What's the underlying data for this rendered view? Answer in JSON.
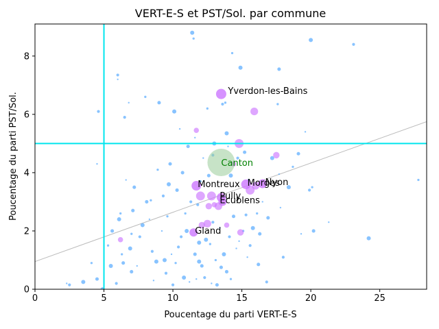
{
  "chart_data": {
    "type": "scatter",
    "title": "VERT-E-S et PST/Sol. par commune",
    "xlabel": "Poucentage du parti VERT-E-S",
    "ylabel": "Poucentage du parti PST/Sol.",
    "xlim": [
      0,
      28.4
    ],
    "ylim": [
      0,
      9.1
    ],
    "xticks": [
      0,
      5,
      10,
      15,
      20,
      25
    ],
    "yticks": [
      0,
      2,
      4,
      6,
      8
    ],
    "grid": false,
    "reference_lines": {
      "vertical_x": 5,
      "horizontal_y": 5,
      "color": "#00e5ee"
    },
    "regression_line": {
      "points": [
        [
          0,
          0.95
        ],
        [
          28.4,
          5.75
        ]
      ],
      "color": "#bbbbbb"
    },
    "colors": {
      "small_points": "#55aaff",
      "labelled_points": "#cc77ff",
      "canton_bubble": "#99cc99",
      "canton_label": "#008000"
    },
    "canton": {
      "name": "Canton",
      "x": 13.5,
      "y": 4.35
    },
    "labelled_communes": [
      {
        "name": "Yverdon-les-Bains",
        "x": 13.5,
        "y": 6.7
      },
      {
        "name": "Montreux",
        "x": 11.7,
        "y": 3.55
      },
      {
        "name": "Morges",
        "x": 15.3,
        "y": 3.6
      },
      {
        "name": "Nyon",
        "x": 16.5,
        "y": 3.62
      },
      {
        "name": "Pully",
        "x": 13.5,
        "y": 3.15
      },
      {
        "name": "Ecublens",
        "x": 13.6,
        "y": 3.0
      },
      {
        "name": "Gland",
        "x": 11.5,
        "y": 1.95
      }
    ],
    "medium_points": [
      [
        11.7,
        5.45
      ],
      [
        14.8,
        5.0
      ],
      [
        15.9,
        6.1
      ],
      [
        17.5,
        4.6
      ],
      [
        14.4,
        4.3
      ],
      [
        12.0,
        3.2
      ],
      [
        12.5,
        2.25
      ],
      [
        12.1,
        2.2
      ],
      [
        13.9,
        2.2
      ],
      [
        15.6,
        3.4
      ],
      [
        16.0,
        3.55
      ],
      [
        14.9,
        1.95
      ],
      [
        6.2,
        1.7
      ],
      [
        12.8,
        3.2
      ],
      [
        13.3,
        2.85
      ],
      [
        12.6,
        2.85
      ],
      [
        13.0,
        2.9
      ]
    ],
    "small_points": [
      [
        2.3,
        0.2
      ],
      [
        2.5,
        0.15
      ],
      [
        3.5,
        0.25
      ],
      [
        4.1,
        0.9
      ],
      [
        4.5,
        0.35
      ],
      [
        4.5,
        4.3
      ],
      [
        4.6,
        6.1
      ],
      [
        5.5,
        0.8
      ],
      [
        5.3,
        1.5
      ],
      [
        5.6,
        2.0
      ],
      [
        6.0,
        7.2
      ],
      [
        6.0,
        7.35
      ],
      [
        6.1,
        2.4
      ],
      [
        6.3,
        1.2
      ],
      [
        6.4,
        0.9
      ],
      [
        6.8,
        6.4
      ],
      [
        6.5,
        5.9
      ],
      [
        6.9,
        1.4
      ],
      [
        7.0,
        1.9
      ],
      [
        7.2,
        3.5
      ],
      [
        7.4,
        0.8
      ],
      [
        7.6,
        1.8
      ],
      [
        7.8,
        2.2
      ],
      [
        8.0,
        6.6
      ],
      [
        8.1,
        3.0
      ],
      [
        8.3,
        2.4
      ],
      [
        8.5,
        1.3
      ],
      [
        8.8,
        0.95
      ],
      [
        8.9,
        4.1
      ],
      [
        9.0,
        6.4
      ],
      [
        9.2,
        2.0
      ],
      [
        9.3,
        3.2
      ],
      [
        9.4,
        1.0
      ],
      [
        9.6,
        2.5
      ],
      [
        9.8,
        4.3
      ],
      [
        9.9,
        1.2
      ],
      [
        10.0,
        0.15
      ],
      [
        10.1,
        6.1
      ],
      [
        10.2,
        0.9
      ],
      [
        10.3,
        3.4
      ],
      [
        10.5,
        5.5
      ],
      [
        10.6,
        1.8
      ],
      [
        10.8,
        0.4
      ],
      [
        10.9,
        2.6
      ],
      [
        11.1,
        4.9
      ],
      [
        11.2,
        0.25
      ],
      [
        11.3,
        3.0
      ],
      [
        11.4,
        8.8
      ],
      [
        11.5,
        8.6
      ],
      [
        11.6,
        1.2
      ],
      [
        11.7,
        0.35
      ],
      [
        11.8,
        2.9
      ],
      [
        11.9,
        1.6
      ],
      [
        12.0,
        3.7
      ],
      [
        12.1,
        0.8
      ],
      [
        12.2,
        4.5
      ],
      [
        12.3,
        0.4
      ],
      [
        12.4,
        1.7
      ],
      [
        12.5,
        6.2
      ],
      [
        12.6,
        3.9
      ],
      [
        12.8,
        0.2
      ],
      [
        12.9,
        2.3
      ],
      [
        13.0,
        5.0
      ],
      [
        13.1,
        1.0
      ],
      [
        13.2,
        0.15
      ],
      [
        13.4,
        2.1
      ],
      [
        13.6,
        6.35
      ],
      [
        13.7,
        1.2
      ],
      [
        13.8,
        6.4
      ],
      [
        13.9,
        0.6
      ],
      [
        14.0,
        4.9
      ],
      [
        14.1,
        1.8
      ],
      [
        14.2,
        3.9
      ],
      [
        14.3,
        8.1
      ],
      [
        14.4,
        2.5
      ],
      [
        14.6,
        1.4
      ],
      [
        14.7,
        4.5
      ],
      [
        14.9,
        7.6
      ],
      [
        15.1,
        2.0
      ],
      [
        15.2,
        4.7
      ],
      [
        15.4,
        1.1
      ],
      [
        15.6,
        1.5
      ],
      [
        15.8,
        2.1
      ],
      [
        16.1,
        2.6
      ],
      [
        16.3,
        1.9
      ],
      [
        16.5,
        3.0
      ],
      [
        16.8,
        0.25
      ],
      [
        17.2,
        4.5
      ],
      [
        17.6,
        6.35
      ],
      [
        17.7,
        7.55
      ],
      [
        17.8,
        2.8
      ],
      [
        18.0,
        1.1
      ],
      [
        18.4,
        3.5
      ],
      [
        18.7,
        4.2
      ],
      [
        19.1,
        4.65
      ],
      [
        19.3,
        1.9
      ],
      [
        19.9,
        3.4
      ],
      [
        20.0,
        8.55
      ],
      [
        20.1,
        3.5
      ],
      [
        20.2,
        2.0
      ],
      [
        21.3,
        2.3
      ],
      [
        23.1,
        8.4
      ],
      [
        24.2,
        1.75
      ],
      [
        27.8,
        3.75
      ],
      [
        7.0,
        0.6
      ],
      [
        8.6,
        0.3
      ],
      [
        10.4,
        1.45
      ],
      [
        11.0,
        2.0
      ],
      [
        12.7,
        1.55
      ],
      [
        13.5,
        0.75
      ],
      [
        14.8,
        1.65
      ],
      [
        15.3,
        2.55
      ],
      [
        9.7,
        3.6
      ],
      [
        8.4,
        3.05
      ],
      [
        7.1,
        2.7
      ],
      [
        6.6,
        3.75
      ],
      [
        5.9,
        0.2
      ],
      [
        4.9,
        0.0
      ],
      [
        6.2,
        2.6
      ],
      [
        10.7,
        4.0
      ],
      [
        11.6,
        5.2
      ],
      [
        12.9,
        4.6
      ],
      [
        13.9,
        5.35
      ],
      [
        15.5,
        3.75
      ],
      [
        16.9,
        2.45
      ],
      [
        17.7,
        3.95
      ],
      [
        9.5,
        0.55
      ],
      [
        11.9,
        0.95
      ],
      [
        14.2,
        0.35
      ],
      [
        16.2,
        0.85
      ],
      [
        19.6,
        5.4
      ]
    ]
  }
}
